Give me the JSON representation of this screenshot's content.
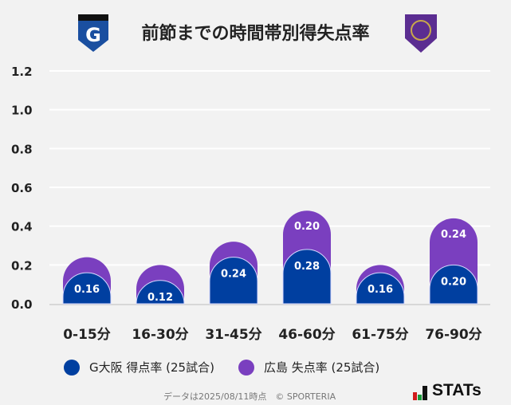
{
  "title": "前節までの時間帯別得失点率",
  "chart_data": {
    "type": "bar",
    "stacked": true,
    "categories": [
      "0-15分",
      "16-30分",
      "31-45分",
      "46-60分",
      "61-75分",
      "76-90分"
    ],
    "series": [
      {
        "name": "G大阪 得点率 (25試合)",
        "color": "#003fa0",
        "values": [
          0.16,
          0.12,
          0.24,
          0.28,
          0.16,
          0.2
        ]
      },
      {
        "name": "広島 失点率 (25試合)",
        "color": "#7a3fbf",
        "values": [
          0.08,
          0.08,
          0.08,
          0.2,
          0.04,
          0.24
        ]
      }
    ],
    "yticks": [
      "0.0",
      "0.2",
      "0.4",
      "0.6",
      "0.8",
      "1.0",
      "1.2"
    ],
    "ylim": [
      0,
      1.2
    ],
    "grid": true,
    "legend": "bottom"
  },
  "footer": "データは2025/08/11時点　© SPORTERIA",
  "brand": "STATs"
}
